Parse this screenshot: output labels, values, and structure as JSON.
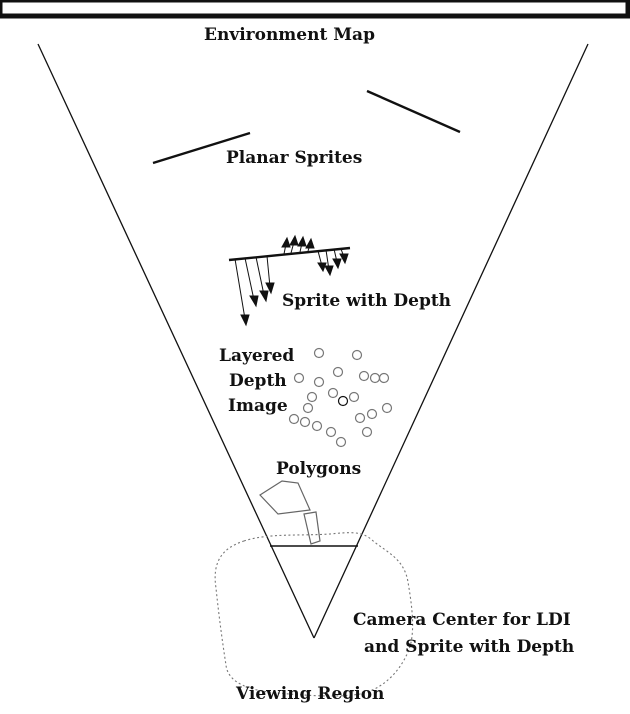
{
  "labels": {
    "environment_map": "Environment Map",
    "planar_sprites": "Planar Sprites",
    "sprite_with_depth": "Sprite with Depth",
    "ldi_line1": "Layered",
    "ldi_line2": "Depth",
    "ldi_line3": "Image",
    "polygons": "Polygons",
    "camera_line1": "Camera Center for LDI",
    "camera_line2": "and Sprite with Depth",
    "viewing_region": "Viewing Region"
  },
  "colors": {
    "stroke": "#111111",
    "point": "#777777",
    "polygon": "#666666"
  }
}
